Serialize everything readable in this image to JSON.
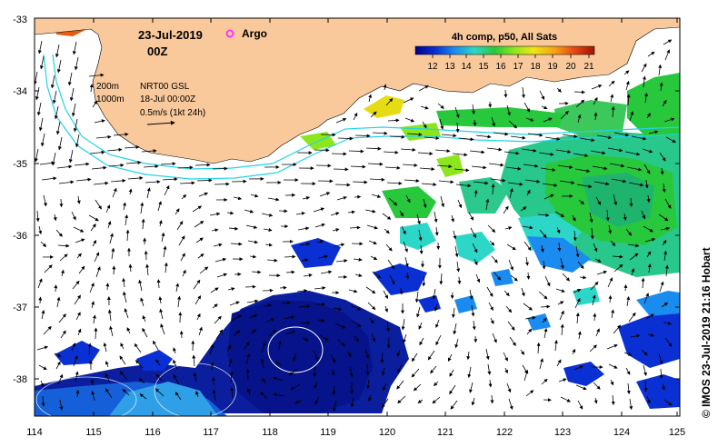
{
  "header": {
    "date": "23-Jul-2019",
    "time": "00Z",
    "argo_label": "Argo",
    "argo_color": "#ff33ff"
  },
  "legend": {
    "title": "4h comp, p50, All Sats",
    "values": [
      "12",
      "13",
      "14",
      "15",
      "16",
      "17",
      "18",
      "19",
      "20",
      "21"
    ],
    "ramp_colors": [
      "#00008c",
      "#0a2fd2",
      "#1a8cf0",
      "#2dd7c8",
      "#28c83c",
      "#8ce61e",
      "#f0e614",
      "#f5a014",
      "#e64614",
      "#a0140a"
    ]
  },
  "info": {
    "iso200": "200m",
    "iso1000": "1000m",
    "dataset": "NRT00 GSL",
    "data_date": "18-Jul 00:00Z",
    "scale": "0.5m/s (1kt 24h)"
  },
  "axes": {
    "lon_ticks": [
      "114",
      "115",
      "116",
      "117",
      "118",
      "119",
      "120",
      "121",
      "122",
      "123",
      "124",
      "125"
    ],
    "lat_ticks": [
      "-33",
      "-34",
      "-35",
      "-36",
      "-37",
      "-38"
    ]
  },
  "credit": "© IMOS 23-Jul-2019 21:16 Hobart",
  "colors": {
    "land": "#f9c99b",
    "isobath": "#22d3e8",
    "frame": "#000000"
  }
}
